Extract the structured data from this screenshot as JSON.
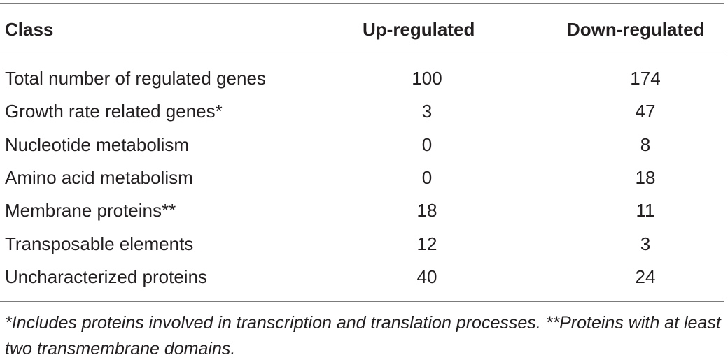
{
  "table": {
    "headers": {
      "class": "Class",
      "up": "Up-regulated",
      "down": "Down-regulated"
    },
    "rows": [
      {
        "class": "Total number of regulated genes",
        "up": "100",
        "down": "174"
      },
      {
        "class": "Growth rate related genes*",
        "up": "3",
        "down": "47"
      },
      {
        "class": "Nucleotide metabolism",
        "up": "0",
        "down": "8"
      },
      {
        "class": "Amino acid metabolism",
        "up": "0",
        "down": "18"
      },
      {
        "class": "Membrane proteins**",
        "up": "18",
        "down": "11"
      },
      {
        "class": "Transposable elements",
        "up": "12",
        "down": "3"
      },
      {
        "class": "Uncharacterized proteins",
        "up": "40",
        "down": "24"
      }
    ],
    "footnote": "*Includes proteins involved in transcription and translation processes. **Proteins with at least two transmembrane domains."
  }
}
